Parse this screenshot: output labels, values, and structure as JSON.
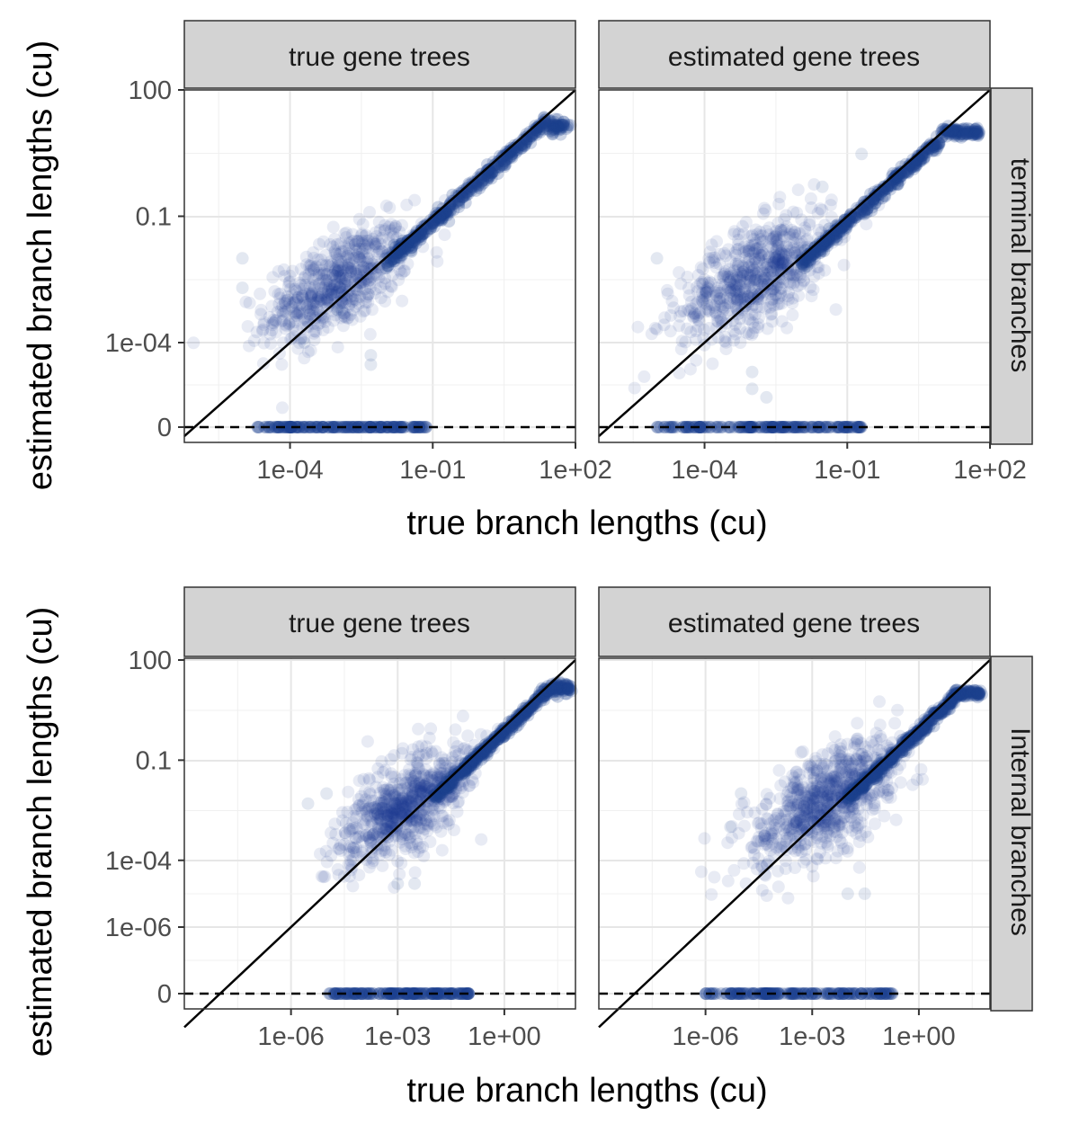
{
  "chart_data": [
    {
      "type": "scatter",
      "row_label": "terminal branches",
      "xlabel": "true branch lengths (cu)",
      "ylabel": "estimated branch lengths (cu)",
      "x_scale": "log10",
      "y_scale": "log10 with zero row",
      "xlim": [
        "6e-07",
        "1e+02"
      ],
      "ylim": [
        "0",
        "100"
      ],
      "x_ticks": [
        "1e-04",
        "1e-01",
        "1e+02"
      ],
      "y_ticks": [
        "0",
        "1e-04",
        "0.1",
        "100"
      ],
      "point_color": "#1a3f8f",
      "reference_lines": [
        "y = x",
        "y = 0 (dashed)"
      ],
      "panels": [
        {
          "title": "true gene trees",
          "cloud": {
            "x_center_log10": -3.0,
            "x_spread": 0.75,
            "y_center_log10": -2.6,
            "y_spread": 0.55,
            "n": 600
          },
          "trend": {
            "x_from": "1e-02",
            "x_to": "1e+01",
            "saturates_at": "2e+01",
            "x_end": "8e+01"
          },
          "zero_values": {
            "x_min": "2e-05",
            "x_max": "8e-02"
          },
          "outliers": [
            [
              "2e-04",
              "1e-04"
            ],
            [
              "5e-03",
              "5e-05"
            ],
            [
              "5e-03",
              "3e-05"
            ],
            [
              "1e-03",
              "6e-04"
            ],
            [
              "1e-05",
              "1e-02"
            ],
            [
              "1e-05",
              "2e-03"
            ]
          ]
        },
        {
          "title": "estimated gene trees",
          "cloud": {
            "x_center_log10": -2.9,
            "x_spread": 0.8,
            "y_center_log10": -2.4,
            "y_spread": 0.6,
            "n": 650
          },
          "trend": {
            "x_from": "1e-02",
            "x_to": "6e+01",
            "saturates_at": "1e+01",
            "x_end": "6e+01"
          },
          "zero_values": {
            "x_min": "1e-05",
            "x_max": "2e-01"
          },
          "outliers": [
            [
              "1e-03",
              "2e-05"
            ],
            [
              "1e-03",
              "8e-06"
            ],
            [
              "2e-03",
              "5e-06"
            ],
            [
              "1e-05",
              "1e-02"
            ],
            [
              "3e-02",
              "5e-01"
            ],
            [
              "2e-01",
              "3e+00"
            ]
          ]
        }
      ]
    },
    {
      "type": "scatter",
      "row_label": "Internal branches",
      "xlabel": "true branch lengths (cu)",
      "ylabel": "estimated branch lengths (cu)",
      "x_scale": "log10",
      "y_scale": "log10 with zero row",
      "xlim": [
        "1e-09",
        "1e+02"
      ],
      "ylim": [
        "0",
        "100"
      ],
      "x_ticks": [
        "1e-06",
        "1e-03",
        "1e+00"
      ],
      "y_ticks": [
        "0",
        "1e-06",
        "1e-04",
        "0.1",
        "100"
      ],
      "point_color": "#1a3f8f",
      "reference_lines": [
        "y = x",
        "y = 0 (dashed)"
      ],
      "panels": [
        {
          "title": "true gene trees",
          "cloud": {
            "x_center_log10": -2.8,
            "x_spread": 0.9,
            "y_center_log10": -2.4,
            "y_spread": 0.7,
            "n": 700
          },
          "trend": {
            "x_from": "1e-02",
            "x_to": "1e+01",
            "saturates_at": "2e+01",
            "x_end": "8e+01"
          },
          "zero_values": {
            "x_min": "1e-05",
            "x_max": "1e-01"
          },
          "outliers": [
            [
              "1e-03",
              "2e-05"
            ],
            [
              "3e-03",
              "2e-05"
            ],
            [
              "1e-05",
              "1e-02"
            ],
            [
              "3e-06",
              "5e-03"
            ]
          ]
        },
        {
          "title": "estimated gene trees",
          "cloud": {
            "x_center_log10": -2.6,
            "x_spread": 1.0,
            "y_center_log10": -2.2,
            "y_spread": 0.7,
            "n": 750
          },
          "trend": {
            "x_from": "1e-02",
            "x_to": "6e+01",
            "saturates_at": "1e+01",
            "x_end": "6e+01"
          },
          "zero_values": {
            "x_min": "1e-06",
            "x_max": "2e-01"
          },
          "outliers": [
            [
              "1e-02",
              "1e-05"
            ],
            [
              "3e-02",
              "1e-05"
            ],
            [
              "1e-05",
              "1e-02"
            ],
            [
              "5e-06",
              "1e-03"
            ]
          ]
        }
      ]
    }
  ]
}
